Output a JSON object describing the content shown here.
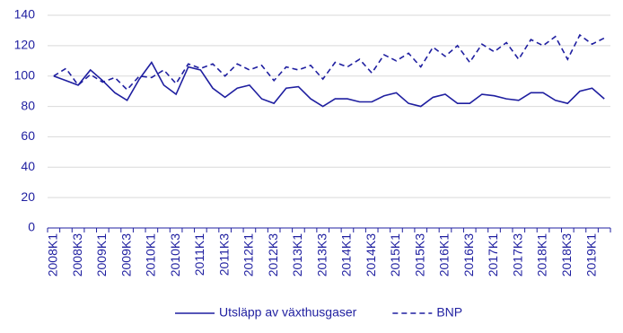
{
  "chart_data": {
    "type": "line",
    "categories": [
      "2008K1",
      null,
      "2008K3",
      null,
      "2009K1",
      null,
      "2009K3",
      null,
      "2010K1",
      null,
      "2010K3",
      null,
      "2011K1",
      null,
      "2011K3",
      null,
      "2012K1",
      null,
      "2012K3",
      null,
      "2013K1",
      null,
      "2013K3",
      null,
      "2014K1",
      null,
      "2014K3",
      null,
      "2015K1",
      null,
      "2015K3",
      null,
      "2016K1",
      null,
      "2016K3",
      null,
      "2017K1",
      null,
      "2017K3",
      null,
      "2018K1",
      null,
      "2018K3",
      null,
      "2019K1",
      null
    ],
    "series": [
      {
        "name": "Utsläpp av växthusgaser",
        "color": "#1f1fa0",
        "style": "solid",
        "values": [
          100,
          97,
          94,
          104,
          97,
          89,
          84,
          98,
          109,
          94,
          88,
          106,
          104,
          92,
          86,
          92,
          94,
          85,
          82,
          92,
          93,
          85,
          80,
          85,
          85,
          83,
          83,
          87,
          89,
          82,
          80,
          86,
          88,
          82,
          82,
          88,
          87,
          85,
          84,
          89,
          89,
          84,
          82,
          90,
          92,
          85
        ]
      },
      {
        "name": "BNP",
        "color": "#1f1fa0",
        "style": "dashed",
        "values": [
          100,
          105,
          94,
          101,
          96,
          99,
          91,
          100,
          99,
          104,
          95,
          108,
          105,
          108,
          100,
          108,
          104,
          107,
          97,
          106,
          104,
          107,
          98,
          109,
          106,
          111,
          102,
          114,
          110,
          115,
          106,
          119,
          113,
          120,
          109,
          121,
          116,
          122,
          111,
          124,
          120,
          126,
          111,
          127,
          121,
          125
        ]
      }
    ],
    "ylim": [
      0,
      140
    ],
    "yticks": [
      0,
      20,
      40,
      60,
      80,
      100,
      120,
      140
    ],
    "grid": true,
    "legend": "bottom"
  }
}
